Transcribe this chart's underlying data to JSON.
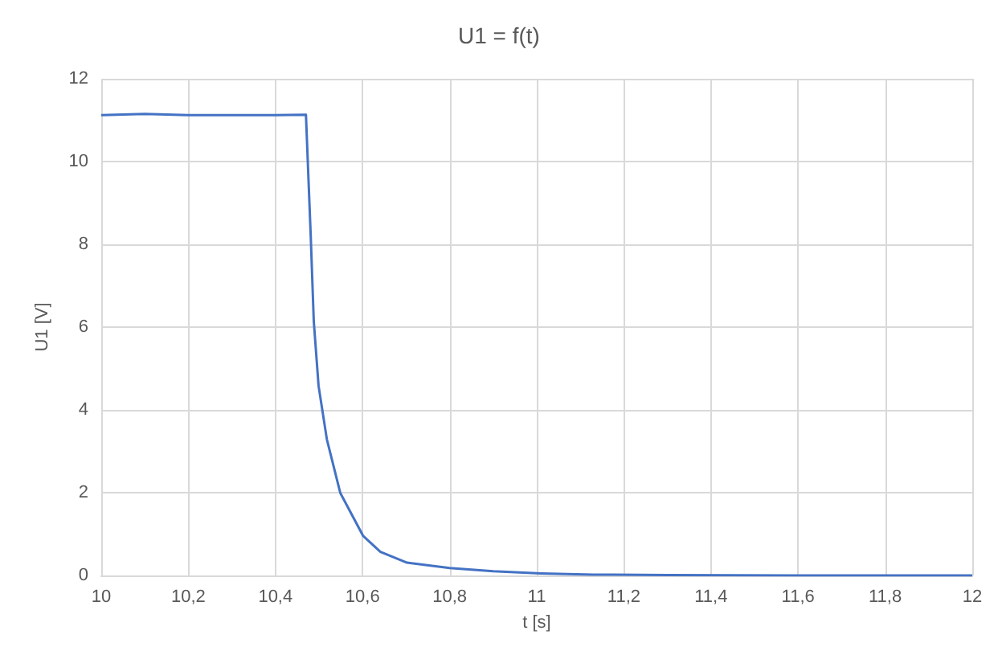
{
  "chart_data": {
    "type": "line",
    "title": "U1 = f(t)",
    "xlabel": "t [s]",
    "ylabel": "U1 [V]",
    "series": [
      {
        "color": "#4472c4",
        "x": [
          10,
          10.1,
          10.2,
          10.3,
          10.4,
          10.47,
          10.472,
          10.481,
          10.488,
          10.499,
          10.518,
          10.549,
          10.601,
          10.641,
          10.702,
          10.8,
          10.9,
          11.01,
          11.13,
          11.3,
          11.6,
          12
        ],
        "values": [
          11.12,
          11.15,
          11.12,
          11.12,
          11.12,
          11.13,
          11.12,
          8.2,
          6.14,
          4.58,
          3.29,
          1.99,
          0.96,
          0.57,
          0.31,
          0.18,
          0.1,
          0.05,
          0.02,
          0.01,
          0,
          0
        ]
      }
    ],
    "xlim": [
      10,
      12
    ],
    "xticks": [
      10,
      {
        "value": 10.2,
        "label": "10,2"
      },
      {
        "value": 10.4,
        "label": "10,4"
      },
      {
        "value": 10.6,
        "label": "10,6"
      },
      {
        "value": 10.8,
        "label": "10,8"
      },
      11,
      {
        "value": 11.2,
        "label": "11,2"
      },
      {
        "value": 11.4,
        "label": "11,4"
      },
      {
        "value": 11.6,
        "label": "11,6"
      },
      {
        "value": 11.8,
        "label": "11,8"
      },
      12
    ],
    "ylim": [
      0,
      12
    ],
    "yticks": [
      0,
      2,
      4,
      6,
      8,
      10,
      12
    ],
    "grid": true,
    "marker": "none",
    "line_style": "solid"
  }
}
